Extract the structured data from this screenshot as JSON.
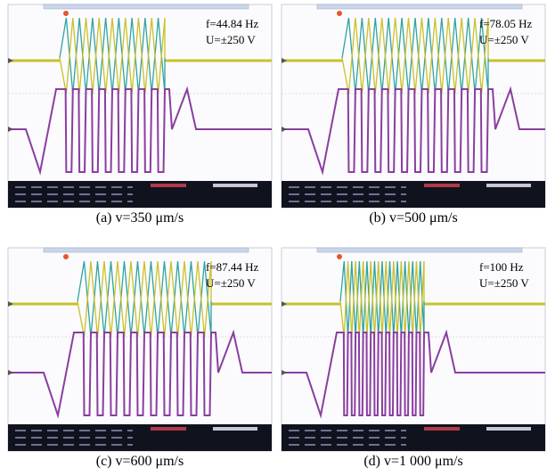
{
  "panels": [
    {
      "freq": "f=44.84 Hz",
      "voltage": "U=±250 V",
      "caption": "(a) v=350 μm/s"
    },
    {
      "freq": "f=78.05 Hz",
      "voltage": "U=±250 V",
      "caption": "(b) v=500 μm/s"
    },
    {
      "freq": "f=87.44 Hz",
      "voltage": "U=±250 V",
      "caption": "(c) v=600 μm/s"
    },
    {
      "freq": "f=100 Hz",
      "voltage": "U=±250 V",
      "caption": "(d) v=1 000 μm/s"
    }
  ]
}
